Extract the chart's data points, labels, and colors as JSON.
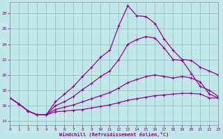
{
  "xlabel": "Windchill (Refroidissement éolien,°C)",
  "bg_color": "#c0e8e8",
  "grid_color": "#a0c0c0",
  "line_color": "#990099",
  "xlim": [
    0,
    23
  ],
  "ylim": [
    13.5,
    29.5
  ],
  "xticks": [
    0,
    1,
    2,
    3,
    4,
    5,
    6,
    7,
    8,
    9,
    10,
    11,
    12,
    13,
    14,
    15,
    16,
    17,
    18,
    19,
    20,
    21,
    22,
    23
  ],
  "yticks": [
    14,
    16,
    18,
    20,
    22,
    24,
    26,
    28
  ],
  "curves": [
    [
      17.0,
      16.2,
      15.3,
      14.8,
      14.8,
      16.5,
      17.5,
      18.5,
      19.8,
      21.0,
      22.3,
      23.2,
      26.4,
      29.0,
      27.7,
      27.6,
      26.7,
      24.7,
      23.2,
      22.0,
      21.9,
      21.0,
      20.5,
      20.0
    ],
    [
      17.0,
      16.2,
      15.3,
      14.8,
      14.8,
      16.0,
      16.5,
      17.2,
      18.1,
      18.9,
      19.8,
      20.5,
      22.0,
      24.0,
      24.6,
      25.0,
      24.8,
      23.5,
      22.0,
      21.9,
      20.2,
      18.5,
      18.0,
      17.2
    ],
    [
      17.0,
      16.2,
      15.3,
      14.8,
      14.8,
      15.5,
      15.8,
      16.1,
      16.5,
      16.9,
      17.3,
      17.7,
      18.3,
      19.0,
      19.4,
      19.8,
      20.0,
      19.8,
      19.6,
      19.8,
      19.6,
      19.1,
      17.5,
      17.0
    ],
    [
      17.0,
      16.2,
      15.3,
      14.8,
      14.8,
      15.2,
      15.3,
      15.4,
      15.5,
      15.7,
      15.9,
      16.1,
      16.4,
      16.7,
      16.9,
      17.1,
      17.3,
      17.4,
      17.5,
      17.6,
      17.6,
      17.5,
      17.0,
      17.0
    ]
  ]
}
